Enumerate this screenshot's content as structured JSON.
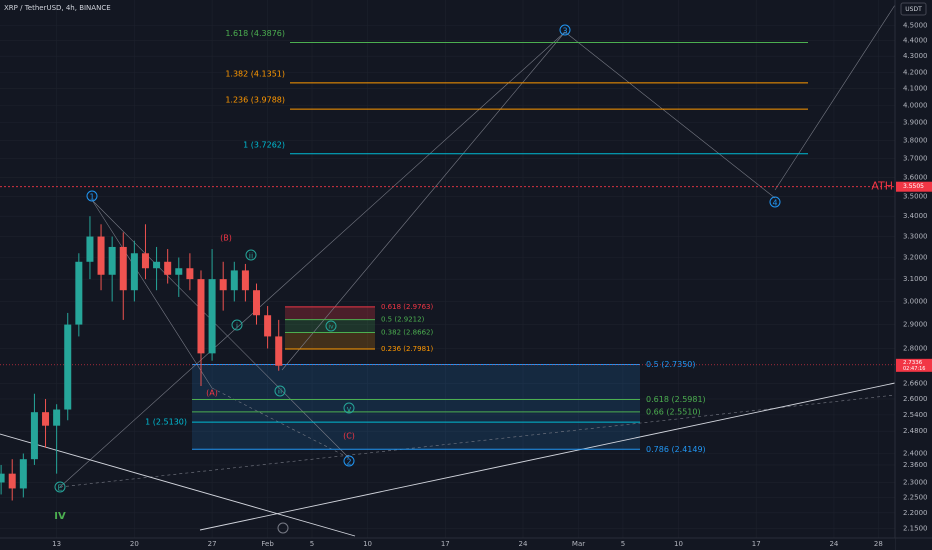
{
  "chart_data": {
    "type": "candlestick",
    "title": "XRP / TetherUSD, 4h, BINANCE",
    "currency": "USDT",
    "log_scale": true,
    "grid": true,
    "up_color": "#26a69a",
    "down_color": "#ef5350",
    "x": [
      -5,
      -4,
      -3,
      -2,
      -1,
      0,
      1,
      2,
      3,
      4,
      5,
      6,
      7,
      8,
      9,
      10,
      11,
      12,
      13,
      14,
      15,
      16,
      17,
      18,
      19,
      20
    ],
    "open": [
      2.3,
      2.33,
      2.28,
      2.38,
      2.55,
      2.5,
      2.56,
      2.9,
      3.18,
      3.3,
      3.12,
      3.25,
      3.05,
      3.22,
      3.15,
      3.18,
      3.12,
      3.15,
      3.1,
      2.78,
      3.1,
      3.05,
      3.14,
      3.05,
      2.94,
      2.85
    ],
    "high": [
      2.36,
      2.38,
      2.4,
      2.62,
      2.6,
      2.58,
      2.95,
      3.22,
      3.4,
      3.36,
      3.3,
      3.32,
      3.28,
      3.36,
      3.25,
      3.24,
      3.2,
      3.22,
      3.14,
      3.24,
      3.18,
      3.18,
      3.17,
      3.08,
      2.98,
      2.92
    ],
    "low": [
      2.26,
      2.24,
      2.25,
      2.36,
      2.42,
      2.33,
      2.52,
      2.85,
      3.1,
      3.05,
      3.0,
      2.92,
      3.0,
      3.1,
      3.05,
      3.08,
      3.02,
      3.05,
      2.65,
      2.75,
      2.96,
      3.0,
      3.0,
      2.9,
      2.8,
      2.71
    ],
    "close": [
      2.33,
      2.28,
      2.38,
      2.55,
      2.5,
      2.56,
      2.9,
      3.18,
      3.3,
      3.12,
      3.25,
      3.05,
      3.22,
      3.15,
      3.18,
      3.12,
      3.15,
      3.1,
      2.78,
      3.1,
      3.05,
      3.14,
      3.05,
      2.94,
      2.85,
      2.73
    ],
    "xlim": [
      -5.1,
      75.5
    ],
    "ylim": [
      2.12,
      4.67
    ],
    "xticks": [
      {
        "value": 0,
        "label": "13"
      },
      {
        "value": 7,
        "label": "20"
      },
      {
        "value": 14,
        "label": "27"
      },
      {
        "value": 19,
        "label": "Feb"
      },
      {
        "value": 23,
        "label": "5"
      },
      {
        "value": 28,
        "label": "10"
      },
      {
        "value": 35,
        "label": "17"
      },
      {
        "value": 42,
        "label": "24"
      },
      {
        "value": 47,
        "label": "Mar"
      },
      {
        "value": 51,
        "label": "5"
      },
      {
        "value": 56,
        "label": "10"
      },
      {
        "value": 63,
        "label": "17"
      },
      {
        "value": 70,
        "label": "24"
      },
      {
        "value": 74,
        "label": "28"
      }
    ],
    "yticks": [
      {
        "value": 4.5,
        "label": "4.5000"
      },
      {
        "value": 4.4,
        "label": "4.4000"
      },
      {
        "value": 4.3,
        "label": "4.3000"
      },
      {
        "value": 4.2,
        "label": "4.2000"
      },
      {
        "value": 4.1,
        "label": "4.1000"
      },
      {
        "value": 4.0,
        "label": "4.0000"
      },
      {
        "value": 3.9,
        "label": "3.9000"
      },
      {
        "value": 3.8,
        "label": "3.8000"
      },
      {
        "value": 3.7,
        "label": "3.7000"
      },
      {
        "value": 3.6,
        "label": "3.6000"
      },
      {
        "value": 3.5,
        "label": "3.5000"
      },
      {
        "value": 3.4,
        "label": "3.4000"
      },
      {
        "value": 3.3,
        "label": "3.3000"
      },
      {
        "value": 3.2,
        "label": "3.2000"
      },
      {
        "value": 3.1,
        "label": "3.1000"
      },
      {
        "value": 3.0,
        "label": "3.0000"
      },
      {
        "value": 2.9,
        "label": "2.9000"
      },
      {
        "value": 2.8,
        "label": "2.8000"
      },
      {
        "value": 2.66,
        "label": "2.6600"
      },
      {
        "value": 2.6,
        "label": "2.6000"
      },
      {
        "value": 2.54,
        "label": "2.5400"
      },
      {
        "value": 2.48,
        "label": "2.4800"
      },
      {
        "value": 2.4,
        "label": "2.4000"
      },
      {
        "value": 2.36,
        "label": "2.3600"
      },
      {
        "value": 2.3,
        "label": "2.3000"
      },
      {
        "value": 2.25,
        "label": "2.2500"
      },
      {
        "value": 2.2,
        "label": "2.2000"
      },
      {
        "value": 2.15,
        "label": "2.1500"
      }
    ],
    "fib_extension": [
      {
        "label": "1.618 (4.3876)",
        "price": 4.3876,
        "color": "#4caf50"
      },
      {
        "label": "1.382 (4.1351)",
        "price": 4.1351,
        "color": "#ff9800"
      },
      {
        "label": "1.236 (3.9788)",
        "price": 3.9788,
        "color": "#ff9800"
      },
      {
        "label": "1 (3.7262)",
        "price": 3.7262,
        "color": "#00bcd4"
      }
    ],
    "fib_small": [
      {
        "label": "0.618 (2.9763)",
        "price": 2.9763,
        "color": "#f23645"
      },
      {
        "label": "0.5 (2.9212)",
        "price": 2.9212,
        "color": "#4caf50"
      },
      {
        "label": "0.382 (2.8662)",
        "price": 2.8662,
        "color": "#4caf50"
      },
      {
        "label": "0.236 (2.7981)",
        "price": 2.7981,
        "color": "#ff9800"
      }
    ],
    "fib_large": [
      {
        "label": "0.5 (2.7350)",
        "price": 2.735,
        "color": "#2196f3"
      },
      {
        "label": "0.618 (2.5981)",
        "price": 2.5981,
        "color": "#4caf50"
      },
      {
        "label": "0.66 (2.5510)",
        "price": 2.551,
        "color": "#4caf50"
      },
      {
        "label": "1 (2.5130)",
        "price": 2.513,
        "color": "#00bcd4"
      },
      {
        "label": "0.786 (2.4149)",
        "price": 2.4149,
        "color": "#2196f3"
      }
    ],
    "ath": {
      "label": "ATH",
      "price": 3.5505,
      "price_label": "3.5505"
    },
    "last": {
      "price": 2.7336,
      "price_label": "2.7336",
      "countdown": "02:47:16"
    },
    "waves": [
      "1",
      "2",
      "3",
      "4",
      "i",
      "ii",
      "iii",
      "iv",
      "v",
      "E",
      "(A)",
      "(B)",
      "(C)",
      "IV"
    ]
  }
}
